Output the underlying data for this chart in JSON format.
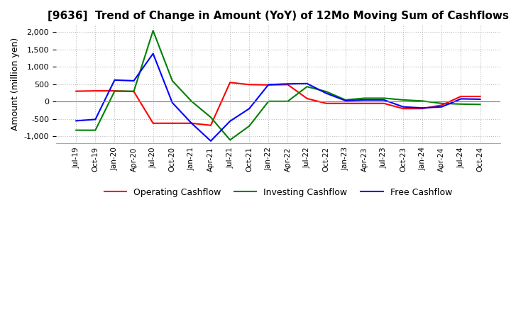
{
  "title": "[9636]  Trend of Change in Amount (YoY) of 12Mo Moving Sum of Cashflows",
  "ylabel": "Amount (million yen)",
  "ylim": [
    -1200,
    2200
  ],
  "yticks": [
    -1000,
    -500,
    0,
    500,
    1000,
    1500,
    2000
  ],
  "x_labels": [
    "Jul-19",
    "Oct-19",
    "Jan-20",
    "Apr-20",
    "Jul-20",
    "Oct-20",
    "Jan-21",
    "Apr-21",
    "Jul-21",
    "Oct-21",
    "Jan-22",
    "Apr-22",
    "Jul-22",
    "Oct-22",
    "Jan-23",
    "Apr-23",
    "Jul-23",
    "Oct-23",
    "Jan-24",
    "Apr-24",
    "Jul-24",
    "Oct-24"
  ],
  "operating": [
    300,
    310,
    310,
    290,
    -620,
    -620,
    -620,
    -680,
    550,
    490,
    480,
    490,
    90,
    -50,
    -50,
    -50,
    -50,
    -200,
    -200,
    -100,
    150,
    150
  ],
  "investing": [
    -820,
    -820,
    300,
    300,
    2040,
    600,
    10,
    -450,
    -1100,
    -700,
    10,
    10,
    430,
    290,
    50,
    100,
    100,
    50,
    20,
    -50,
    -70,
    -80
  ],
  "free": [
    -550,
    -510,
    620,
    600,
    1380,
    -30,
    -620,
    -1130,
    -560,
    -200,
    490,
    510,
    520,
    240,
    30,
    50,
    50,
    -150,
    -180,
    -150,
    80,
    70
  ],
  "operating_color": "#ff0000",
  "investing_color": "#008000",
  "free_color": "#0000ff",
  "background_color": "#ffffff",
  "grid_color": "#bbbbbb",
  "title_fontsize": 11,
  "legend_labels": [
    "Operating Cashflow",
    "Investing Cashflow",
    "Free Cashflow"
  ]
}
